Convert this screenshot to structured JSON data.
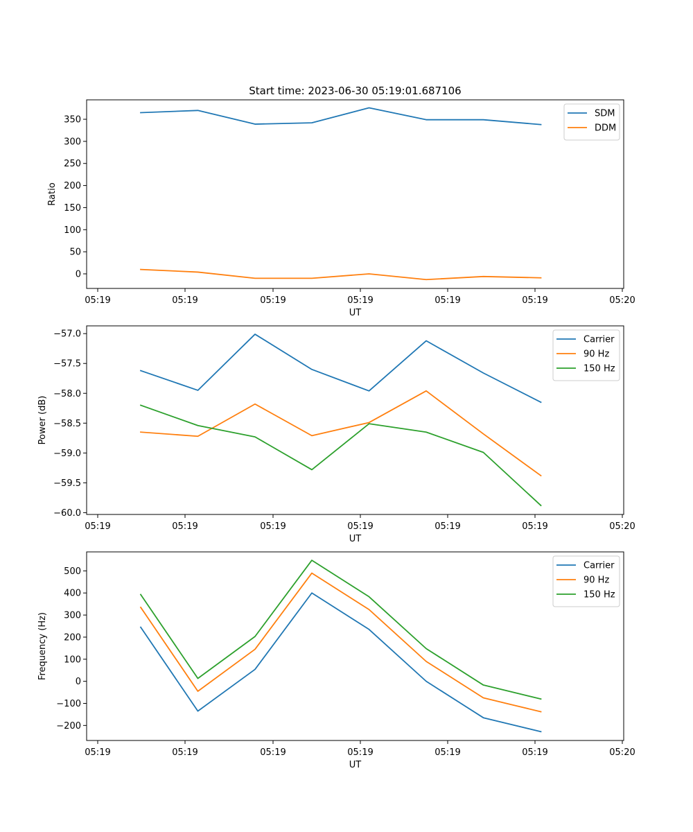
{
  "figure": {
    "title": "Start time: 2023-06-30 05:19:01.687106"
  },
  "chart_data": [
    {
      "type": "line",
      "title": "Start time: 2023-06-30 05:19:01.687106",
      "xlabel": "UT",
      "ylabel": "Ratio",
      "x_tick_labels": [
        "05:19",
        "05:19",
        "05:19",
        "05:19",
        "05:19",
        "05:19",
        "05:20"
      ],
      "y_ticks": [
        0,
        50,
        100,
        150,
        200,
        250,
        300,
        350
      ],
      "ylim": [
        -33,
        394
      ],
      "grid": false,
      "legend_position": "top-right",
      "series": [
        {
          "name": "SDM",
          "color": "#1f77b4",
          "values": [
            365,
            370,
            339,
            342,
            376,
            349,
            349,
            338
          ]
        },
        {
          "name": "DDM",
          "color": "#ff7f0e",
          "values": [
            10,
            4,
            -10,
            -10,
            0,
            -13,
            -6,
            -9
          ]
        }
      ]
    },
    {
      "type": "line",
      "title": "",
      "xlabel": "UT",
      "ylabel": "Power (dB)",
      "x_tick_labels": [
        "05:19",
        "05:19",
        "05:19",
        "05:19",
        "05:19",
        "05:19",
        "05:20"
      ],
      "y_ticks": [
        -60.0,
        -59.5,
        -59.0,
        -58.5,
        -58.0,
        -57.5,
        -57.0
      ],
      "y_tick_labels": [
        "−60.0",
        "−59.5",
        "−59.0",
        "−58.5",
        "−58.0",
        "−57.5",
        "−57.0"
      ],
      "ylim": [
        -60.03,
        -56.87
      ],
      "grid": false,
      "legend_position": "top-right",
      "series": [
        {
          "name": "Carrier",
          "color": "#1f77b4",
          "values": [
            -57.62,
            -57.95,
            -57.01,
            -57.6,
            -57.96,
            -57.12,
            -57.66,
            -58.15
          ]
        },
        {
          "name": "90 Hz",
          "color": "#ff7f0e",
          "values": [
            -58.65,
            -58.72,
            -58.18,
            -58.71,
            -58.49,
            -57.96,
            -58.68,
            -59.38
          ]
        },
        {
          "name": "150 Hz",
          "color": "#2ca02c",
          "values": [
            -58.2,
            -58.54,
            -58.73,
            -59.28,
            -58.51,
            -58.65,
            -58.99,
            -59.88
          ]
        }
      ]
    },
    {
      "type": "line",
      "title": "",
      "xlabel": "UT",
      "ylabel": "Frequency (Hz)",
      "x_tick_labels": [
        "05:19",
        "05:19",
        "05:19",
        "05:19",
        "05:19",
        "05:19",
        "05:20"
      ],
      "y_ticks": [
        -200,
        -100,
        0,
        100,
        200,
        300,
        400,
        500
      ],
      "y_tick_labels": [
        "−200",
        "−100",
        "0",
        "100",
        "200",
        "300",
        "400",
        "500"
      ],
      "ylim": [
        -268,
        586
      ],
      "grid": false,
      "legend_position": "top-right",
      "series": [
        {
          "name": "Carrier",
          "color": "#1f77b4",
          "values": [
            245,
            -135,
            54,
            400,
            235,
            0,
            -165,
            -228
          ]
        },
        {
          "name": "90 Hz",
          "color": "#ff7f0e",
          "values": [
            335,
            -45,
            145,
            490,
            325,
            90,
            -75,
            -138
          ]
        },
        {
          "name": "150 Hz",
          "color": "#2ca02c",
          "values": [
            393,
            13,
            203,
            548,
            383,
            148,
            -17,
            -80
          ]
        }
      ]
    }
  ]
}
